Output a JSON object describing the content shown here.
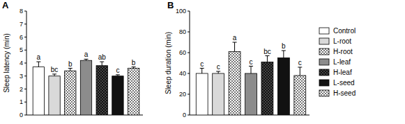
{
  "chart_data": [
    {
      "type": "bar",
      "title": "A",
      "y_label": "Sleep latency (min)",
      "categories": [
        null,
        null,
        null,
        null,
        null,
        null,
        null
      ],
      "values": [
        3.7,
        3.0,
        3.4,
        4.2,
        3.8,
        3.0,
        3.6
      ],
      "errors": [
        0.4,
        0.15,
        0.2,
        0.1,
        0.3,
        0.1,
        0.1
      ],
      "annotations": [
        "a",
        "bc",
        "b",
        "a",
        "ab",
        "c",
        "b"
      ],
      "colors": [
        "#ffffff",
        "#d9d9d9",
        "#f0f0f0",
        "#8c8c8c",
        "#555555",
        "#111111",
        "#e0e0e0"
      ],
      "ylim": [
        0,
        8
      ],
      "yticks": [
        0,
        1,
        2,
        3,
        4,
        5,
        6,
        7,
        8
      ],
      "tick_labels": "y"
    },
    {
      "type": "bar",
      "title": "B",
      "y_label": "Sleep duration (min)",
      "categories": [
        "Control",
        "L-root",
        "H-root",
        "L-leaf",
        "H-leaf",
        "L-seed",
        "H-seed"
      ],
      "values": [
        40,
        40,
        61,
        40,
        51,
        55,
        38
      ],
      "errors": [
        5,
        2,
        9,
        7,
        6,
        7,
        8
      ],
      "annotations": [
        "c",
        "c",
        "a",
        "c",
        "bc",
        "b",
        "c"
      ],
      "colors": [
        "#ffffff",
        "#d9d9d9",
        "#f0f0f0",
        "#8c8c8c",
        "#555555",
        "#111111",
        "#e0e0e0"
      ],
      "ylim": [
        0,
        100
      ],
      "yticks": [
        0,
        20,
        40,
        60,
        80,
        100
      ],
      "tick_labels": "y",
      "legend": "right"
    }
  ]
}
